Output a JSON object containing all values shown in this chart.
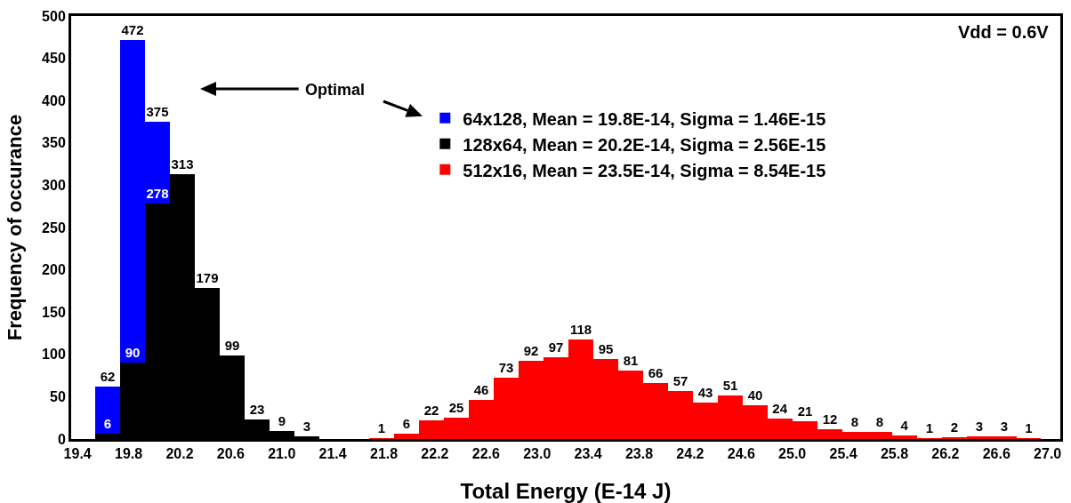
{
  "chart_data": {
    "type": "histogram",
    "xlabel": "Total Energy (E-14 J)",
    "ylabel": "Frequency of occurance",
    "bins": [
      19.54,
      19.735,
      19.93,
      20.125,
      20.32,
      20.515,
      20.71,
      20.905,
      21.1,
      21.295,
      21.49,
      21.685,
      21.88,
      22.075,
      22.27,
      22.465,
      22.66,
      22.855,
      23.05,
      23.245,
      23.44,
      23.635,
      23.83,
      24.025,
      24.22,
      24.415,
      24.61,
      24.805,
      25.0,
      25.195,
      25.39,
      25.585,
      25.78,
      25.975,
      26.17,
      26.365,
      26.56,
      26.755,
      26.95
    ],
    "series": [
      {
        "name": "64x128, Mean = 19.8E-14, Sigma = 1.46E-15",
        "color": "#0000ff",
        "values": [
          62,
          472,
          375,
          null,
          null,
          null,
          null,
          null,
          null,
          null,
          null,
          null,
          null,
          null,
          null,
          null,
          null,
          null,
          null,
          null,
          null,
          null,
          null,
          null,
          null,
          null,
          null,
          null,
          null,
          null,
          null,
          null,
          null,
          null,
          null,
          null,
          null,
          null
        ]
      },
      {
        "name": "128x64, Mean = 20.2E-14, Sigma = 2.56E-15",
        "color": "#000000",
        "values": [
          6,
          90,
          278,
          313,
          179,
          99,
          23,
          9,
          3,
          null,
          null,
          null,
          null,
          null,
          null,
          null,
          null,
          null,
          null,
          null,
          null,
          null,
          null,
          null,
          null,
          null,
          null,
          null,
          null,
          null,
          null,
          null,
          null,
          null,
          null,
          null,
          null,
          null
        ]
      },
      {
        "name": "512x16, Mean = 23.5E-14, Sigma = 8.54E-15",
        "color": "#ff0000",
        "values": [
          null,
          null,
          null,
          null,
          null,
          null,
          null,
          null,
          null,
          null,
          null,
          1,
          6,
          22,
          25,
          46,
          73,
          92,
          97,
          118,
          95,
          81,
          66,
          57,
          43,
          51,
          40,
          24,
          21,
          12,
          8,
          8,
          4,
          1,
          2,
          3,
          3,
          1
        ]
      }
    ],
    "xlim": [
      19.35,
      27.1
    ],
    "xticks": [
      19.4,
      19.8,
      20.2,
      20.6,
      {
        "value": 21.0,
        "label": "21.0"
      },
      21.4,
      21.8,
      22.2,
      22.6,
      {
        "value": 23.0,
        "label": "23.0"
      },
      23.4,
      23.8,
      24.2,
      24.6,
      {
        "value": 25.0,
        "label": "25.0"
      },
      25.4,
      25.8,
      26.2,
      26.6,
      {
        "value": 27.0,
        "label": "27.0"
      }
    ],
    "ylim": [
      0,
      500
    ],
    "yticks": [
      0,
      50,
      100,
      150,
      200,
      250,
      300,
      350,
      400,
      450,
      500
    ],
    "data_labels": true,
    "grid": false,
    "legend": "top",
    "annotations": [
      "Optimal",
      "Vdd = 0.6V"
    ]
  }
}
